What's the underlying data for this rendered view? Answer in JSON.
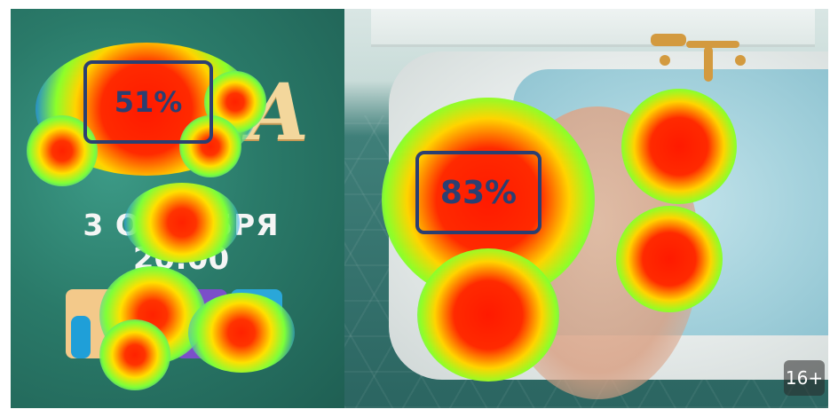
{
  "poster": {
    "date_line": "3 ОКТЯБРЯ",
    "time_line": "20:00",
    "title_fragment": "А",
    "age_rating": "16+"
  },
  "heatmap": {
    "regions": [
      {
        "id": "title",
        "attention_label": "51%",
        "attention_value": 51
      },
      {
        "id": "person",
        "attention_label": "83%",
        "attention_value": 83
      }
    ]
  },
  "colors": {
    "box_border": "#2b3f72",
    "heat_core": "#ff1a00",
    "left_panel": "#2a7a69"
  }
}
